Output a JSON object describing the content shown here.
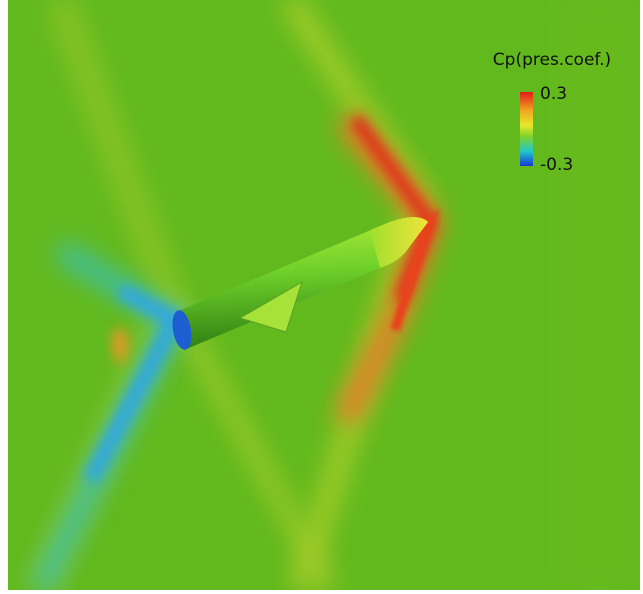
{
  "colorbar": {
    "title": "Cp(pres.coef.)",
    "max": 0.3,
    "min": -0.3
  }
}
